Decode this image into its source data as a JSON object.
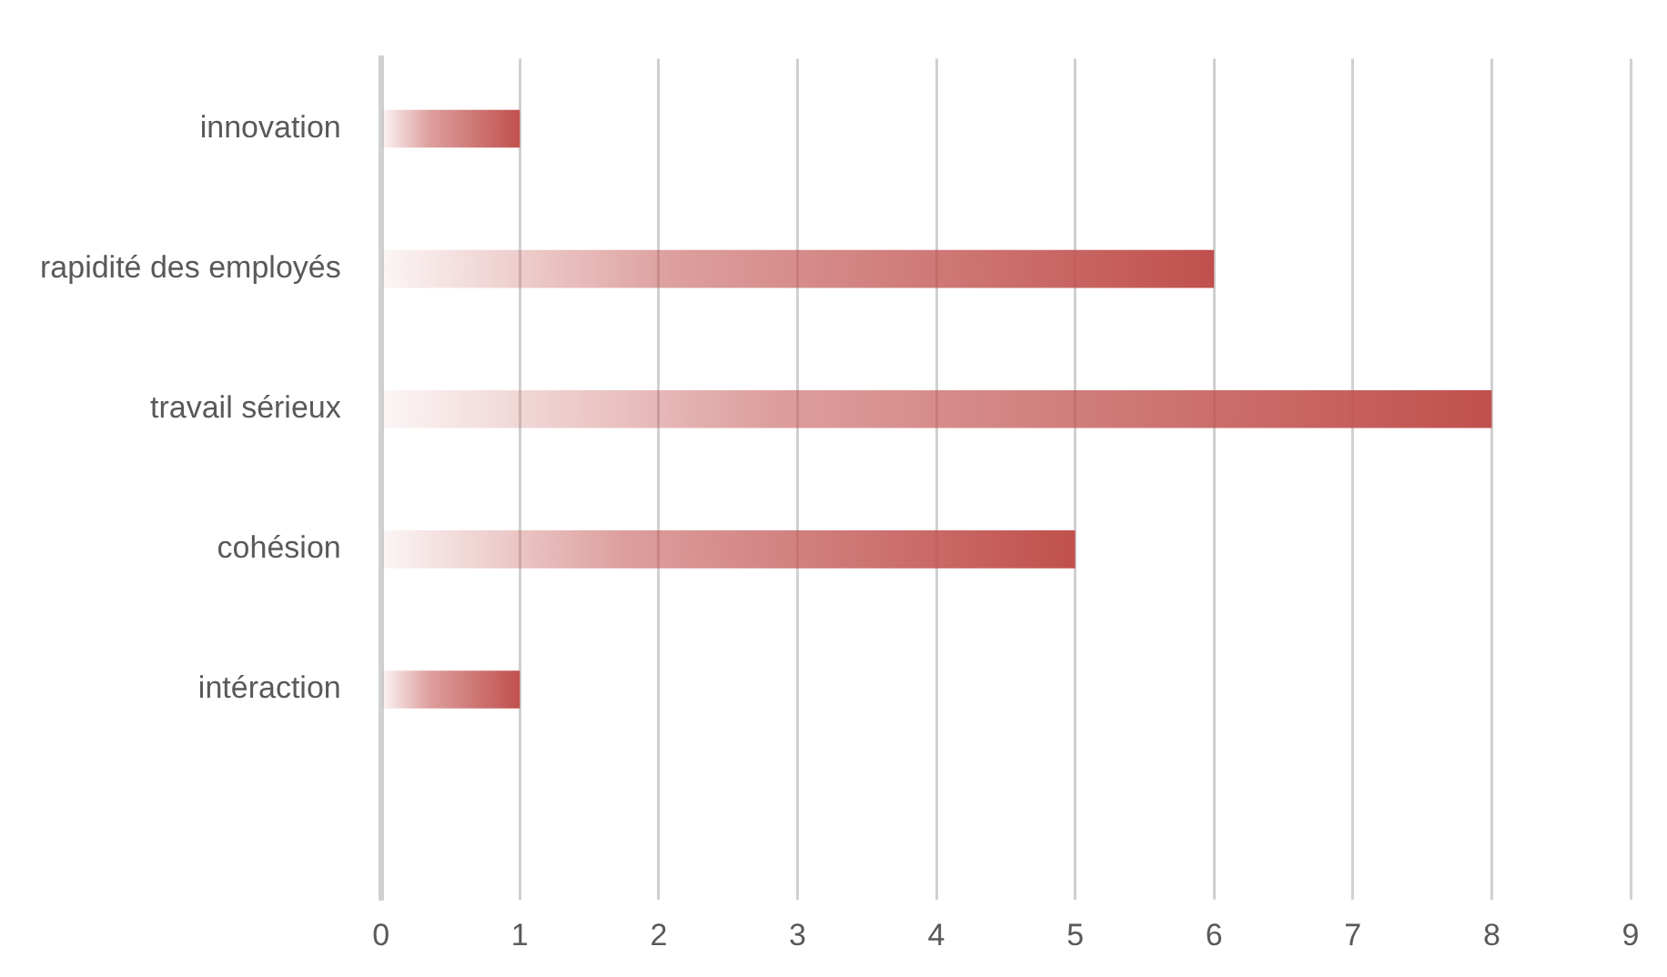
{
  "chart_data": {
    "type": "bar",
    "orientation": "horizontal",
    "categories": [
      "innovation",
      "rapidité des employés",
      "travail sérieux",
      "cohésion",
      "intéraction",
      null
    ],
    "values": [
      1,
      6,
      8,
      5,
      1,
      null
    ],
    "color": "#c0504d",
    "xlim": [
      0,
      9
    ],
    "xticks": [
      0,
      1,
      2,
      3,
      4,
      5,
      6,
      7,
      8,
      9
    ],
    "grid": "x",
    "legend": false
  }
}
